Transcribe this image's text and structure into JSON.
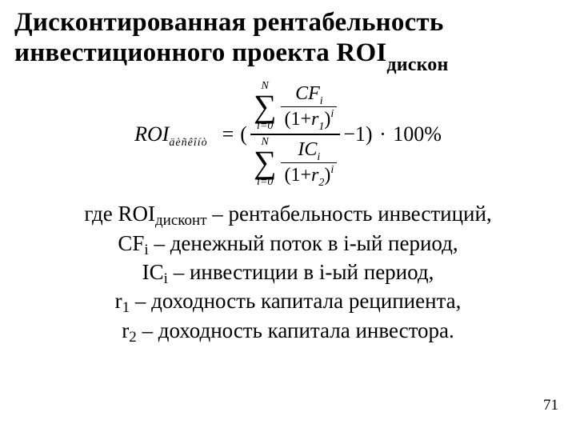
{
  "colors": {
    "bg": "#ffffff",
    "text": "#000000"
  },
  "title": {
    "line1": "Дисконтированная рентабельность",
    "line2_pre": "инвестиционного проекта ROI",
    "line2_sub": "дискон"
  },
  "formula": {
    "lhs": "ROI",
    "lhs_sub": "äèñêîíò",
    "eq": "=",
    "open": "(",
    "sum_upper": "N",
    "sum_lower": "i=0",
    "cf": "CF",
    "cf_sub": "i",
    "one_plus": "(1",
    "plus": "+",
    "r1": "r",
    "r1_sub": "1",
    "r2": "r",
    "r2_sub": "2",
    "close_pow": ")",
    "pow": "i",
    "ic": "IC",
    "ic_sub": "i",
    "minus1": "−1)",
    "times": "·",
    "hundred": "100%"
  },
  "defs": {
    "l1_pre": "где ROI",
    "l1_sub": "дисконт",
    "l1_post": " – рентабельность инвестиций,",
    "l2_pre": "CF",
    "l2_sub": "i",
    "l2_post": " – денежный поток в i-ый  период,",
    "l3_pre": "IC",
    "l3_sub": "i",
    "l3_post": " –   инвестиции в  i-ый  период,",
    "l4_pre": "r",
    "l4_sub": "1",
    "l4_post": " – доходность капитала реципиента,",
    "l5_pre": "r",
    "l5_sub": "2",
    "l5_post": " – доходность капитала инвестора."
  },
  "page": "71"
}
